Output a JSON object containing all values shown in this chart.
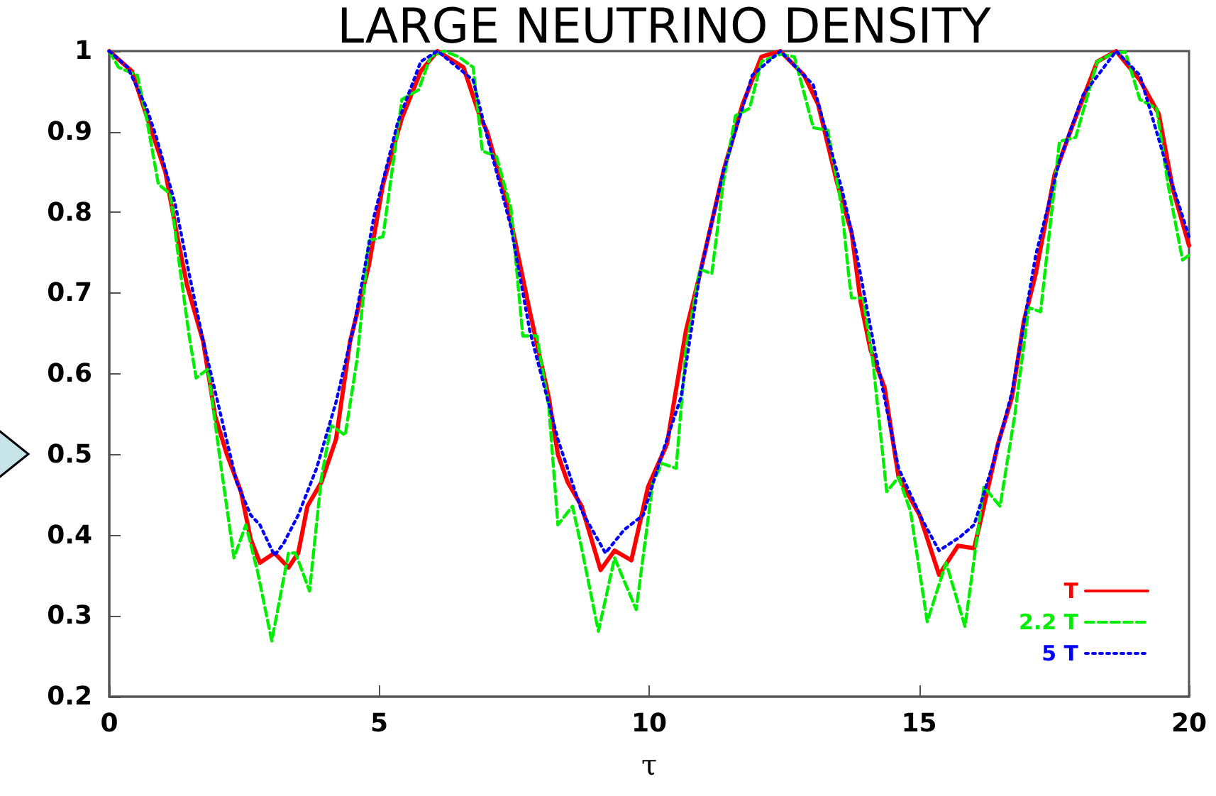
{
  "chart_data": {
    "type": "line",
    "title": "LARGE NEUTRINO DENSITY",
    "xlabel": "τ",
    "xlim": [
      0,
      20
    ],
    "xticks": [
      0,
      5,
      10,
      15,
      20
    ],
    "ylim": [
      0.2,
      1
    ],
    "yticks": [
      0.2,
      0.3,
      0.4,
      0.5,
      0.6,
      0.7,
      0.8,
      0.9,
      1
    ],
    "grid": false,
    "legend": "bottom right",
    "marker": "none",
    "series": [
      {
        "name": "T",
        "color": "#ff0000",
        "line_style": "solid",
        "x": [
          0,
          0.42,
          0.69,
          1.04,
          1.26,
          1.44,
          1.74,
          1.96,
          2.18,
          2.44,
          2.62,
          2.79,
          3.06,
          3.32,
          3.5,
          3.67,
          3.93,
          4.2,
          4.46,
          4.81,
          5.07,
          5.42,
          5.77,
          6.08,
          6.56,
          6.86,
          7.0,
          7.35,
          7.61,
          7.79,
          8.14,
          8.31,
          8.49,
          8.75,
          9.1,
          9.36,
          9.67,
          9.98,
          10.33,
          10.68,
          10.94,
          11.38,
          11.73,
          12.08,
          12.43,
          12.87,
          13.13,
          13.48,
          13.75,
          13.92,
          14.1,
          14.36,
          14.62,
          15.01,
          15.37,
          15.72,
          16.02,
          16.2,
          16.46,
          16.72,
          16.94,
          17.16,
          17.51,
          17.86,
          18.3,
          18.65,
          19.09,
          19.44,
          19.7,
          20.0
        ],
        "values": [
          1.0,
          0.975,
          0.92,
          0.85,
          0.77,
          0.71,
          0.64,
          0.548,
          0.5,
          0.454,
          0.395,
          0.366,
          0.378,
          0.36,
          0.378,
          0.436,
          0.466,
          0.519,
          0.64,
          0.735,
          0.835,
          0.917,
          0.975,
          1.0,
          0.98,
          0.92,
          0.9,
          0.817,
          0.735,
          0.677,
          0.571,
          0.5,
          0.466,
          0.436,
          0.357,
          0.381,
          0.369,
          0.46,
          0.513,
          0.653,
          0.724,
          0.852,
          0.934,
          0.993,
          1.0,
          0.97,
          0.934,
          0.837,
          0.775,
          0.688,
          0.63,
          0.583,
          0.472,
          0.425,
          0.351,
          0.387,
          0.384,
          0.436,
          0.513,
          0.571,
          0.665,
          0.724,
          0.847,
          0.911,
          0.987,
          1.0,
          0.964,
          0.922,
          0.829,
          0.759
        ]
      },
      {
        "name": "2.2 T",
        "color": "#00ee00",
        "line_style": "dashed",
        "x": [
          0,
          0.17,
          0.34,
          0.52,
          0.69,
          0.91,
          1.13,
          1.3,
          1.48,
          1.61,
          1.83,
          2.05,
          2.31,
          2.53,
          2.75,
          3.01,
          3.32,
          3.45,
          3.71,
          3.93,
          4.11,
          4.37,
          4.59,
          4.81,
          5.07,
          5.42,
          5.73,
          5.95,
          6.21,
          6.47,
          6.74,
          6.91,
          7.17,
          7.44,
          7.66,
          7.92,
          8.14,
          8.31,
          8.58,
          8.75,
          9.06,
          9.36,
          9.76,
          10.07,
          10.24,
          10.5,
          10.68,
          10.94,
          11.16,
          11.38,
          11.6,
          11.86,
          12.08,
          12.43,
          12.69,
          13.04,
          13.31,
          13.57,
          13.7,
          13.75,
          13.96,
          14.14,
          14.4,
          14.62,
          14.84,
          15.15,
          15.5,
          15.85,
          16.2,
          16.5,
          16.77,
          17.03,
          17.25,
          17.6,
          17.9,
          18.3,
          18.56,
          18.82,
          19.09,
          19.4,
          19.61,
          19.88,
          20.0
        ],
        "values": [
          1.0,
          0.98,
          0.975,
          0.97,
          0.917,
          0.835,
          0.823,
          0.735,
          0.647,
          0.595,
          0.606,
          0.495,
          0.372,
          0.413,
          0.354,
          0.269,
          0.378,
          0.378,
          0.331,
          0.472,
          0.536,
          0.524,
          0.618,
          0.765,
          0.77,
          0.94,
          0.952,
          0.993,
          1.0,
          0.993,
          0.98,
          0.876,
          0.87,
          0.805,
          0.647,
          0.647,
          0.56,
          0.413,
          0.436,
          0.384,
          0.281,
          0.372,
          0.308,
          0.466,
          0.489,
          0.483,
          0.63,
          0.73,
          0.724,
          0.84,
          0.92,
          0.929,
          0.987,
          0.996,
          0.993,
          0.905,
          0.902,
          0.805,
          0.72,
          0.694,
          0.694,
          0.618,
          0.454,
          0.472,
          0.43,
          0.293,
          0.366,
          0.287,
          0.46,
          0.436,
          0.548,
          0.682,
          0.677,
          0.888,
          0.893,
          0.987,
          0.996,
          0.999,
          0.94,
          0.929,
          0.835,
          0.741,
          0.747
        ]
      },
      {
        "name": "5 T",
        "color": "#0000ff",
        "line_style": "dotted",
        "x": [
          0,
          0.34,
          0.69,
          0.87,
          1.22,
          1.48,
          1.74,
          2.09,
          2.36,
          2.62,
          2.79,
          3.06,
          3.23,
          3.5,
          3.84,
          4.2,
          4.55,
          4.9,
          5.34,
          5.77,
          6.08,
          6.74,
          7.0,
          7.44,
          7.79,
          8.31,
          8.75,
          9.19,
          9.54,
          9.89,
          10.24,
          10.59,
          10.94,
          11.38,
          11.91,
          12.43,
          13.04,
          13.57,
          13.83,
          14.18,
          14.62,
          15.06,
          15.37,
          15.76,
          16.02,
          16.37,
          16.72,
          17.16,
          17.6,
          18.04,
          18.65,
          19.09,
          19.61,
          20.0
        ],
        "values": [
          1.0,
          0.98,
          0.93,
          0.894,
          0.811,
          0.724,
          0.641,
          0.542,
          0.466,
          0.425,
          0.413,
          0.375,
          0.39,
          0.425,
          0.483,
          0.565,
          0.665,
          0.794,
          0.911,
          0.987,
          1.0,
          0.964,
          0.894,
          0.782,
          0.653,
          0.519,
          0.43,
          0.378,
          0.407,
          0.425,
          0.501,
          0.571,
          0.724,
          0.852,
          0.97,
          1.0,
          0.958,
          0.829,
          0.753,
          0.63,
          0.483,
          0.419,
          0.381,
          0.398,
          0.413,
          0.489,
          0.577,
          0.747,
          0.864,
          0.946,
          1.0,
          0.97,
          0.852,
          0.77
        ]
      }
    ]
  }
}
